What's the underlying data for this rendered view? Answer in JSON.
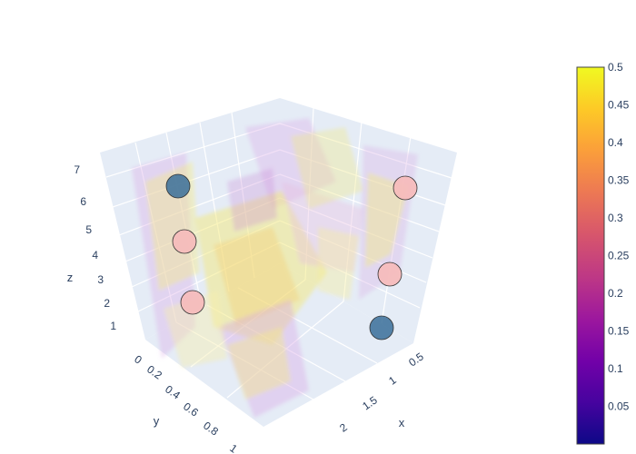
{
  "chart_data": {
    "type": "volume",
    "title": "",
    "x_axis": {
      "title": "x",
      "ticks": [
        "0.5",
        "1",
        "1.5",
        "2"
      ]
    },
    "y_axis": {
      "title": "y",
      "ticks": [
        "0",
        "0.2",
        "0.4",
        "0.6",
        "0.8",
        "1"
      ]
    },
    "z_axis": {
      "title": "z",
      "ticks": [
        "1",
        "2",
        "3",
        "4",
        "5",
        "6",
        "7"
      ]
    },
    "colorscale": "plasma",
    "colorbar": {
      "range": [
        0,
        0.5
      ],
      "ticks": [
        "0.5",
        "0.45",
        "0.4",
        "0.35",
        "0.3",
        "0.25",
        "0.2",
        "0.15",
        "0.1",
        "0.05"
      ]
    },
    "markers": [
      {
        "x": 0.3,
        "y": 0.0,
        "z": 6.0,
        "color": "#3a6f99"
      },
      {
        "x": 0.3,
        "y": 0.0,
        "z": 4.5,
        "color": "#f6bcbc"
      },
      {
        "x": 0.3,
        "y": 0.0,
        "z": 2.5,
        "color": "#f6bcbc"
      },
      {
        "x": 0.4,
        "y": 0.0,
        "z": 6.5,
        "color": "#f6bcbc"
      },
      {
        "x": 0.4,
        "y": 0.0,
        "z": 4.0,
        "color": "#f6bcbc"
      },
      {
        "x": 0.4,
        "y": 0.0,
        "z": 2.0,
        "color": "#3a6f99"
      }
    ],
    "colors": {
      "scene_background": "#e5ecf6",
      "grid": "#ffffff",
      "volume_light": "#f3e98f",
      "volume_mid": "#f0a77a",
      "volume_dark": "#b97ed0"
    }
  }
}
